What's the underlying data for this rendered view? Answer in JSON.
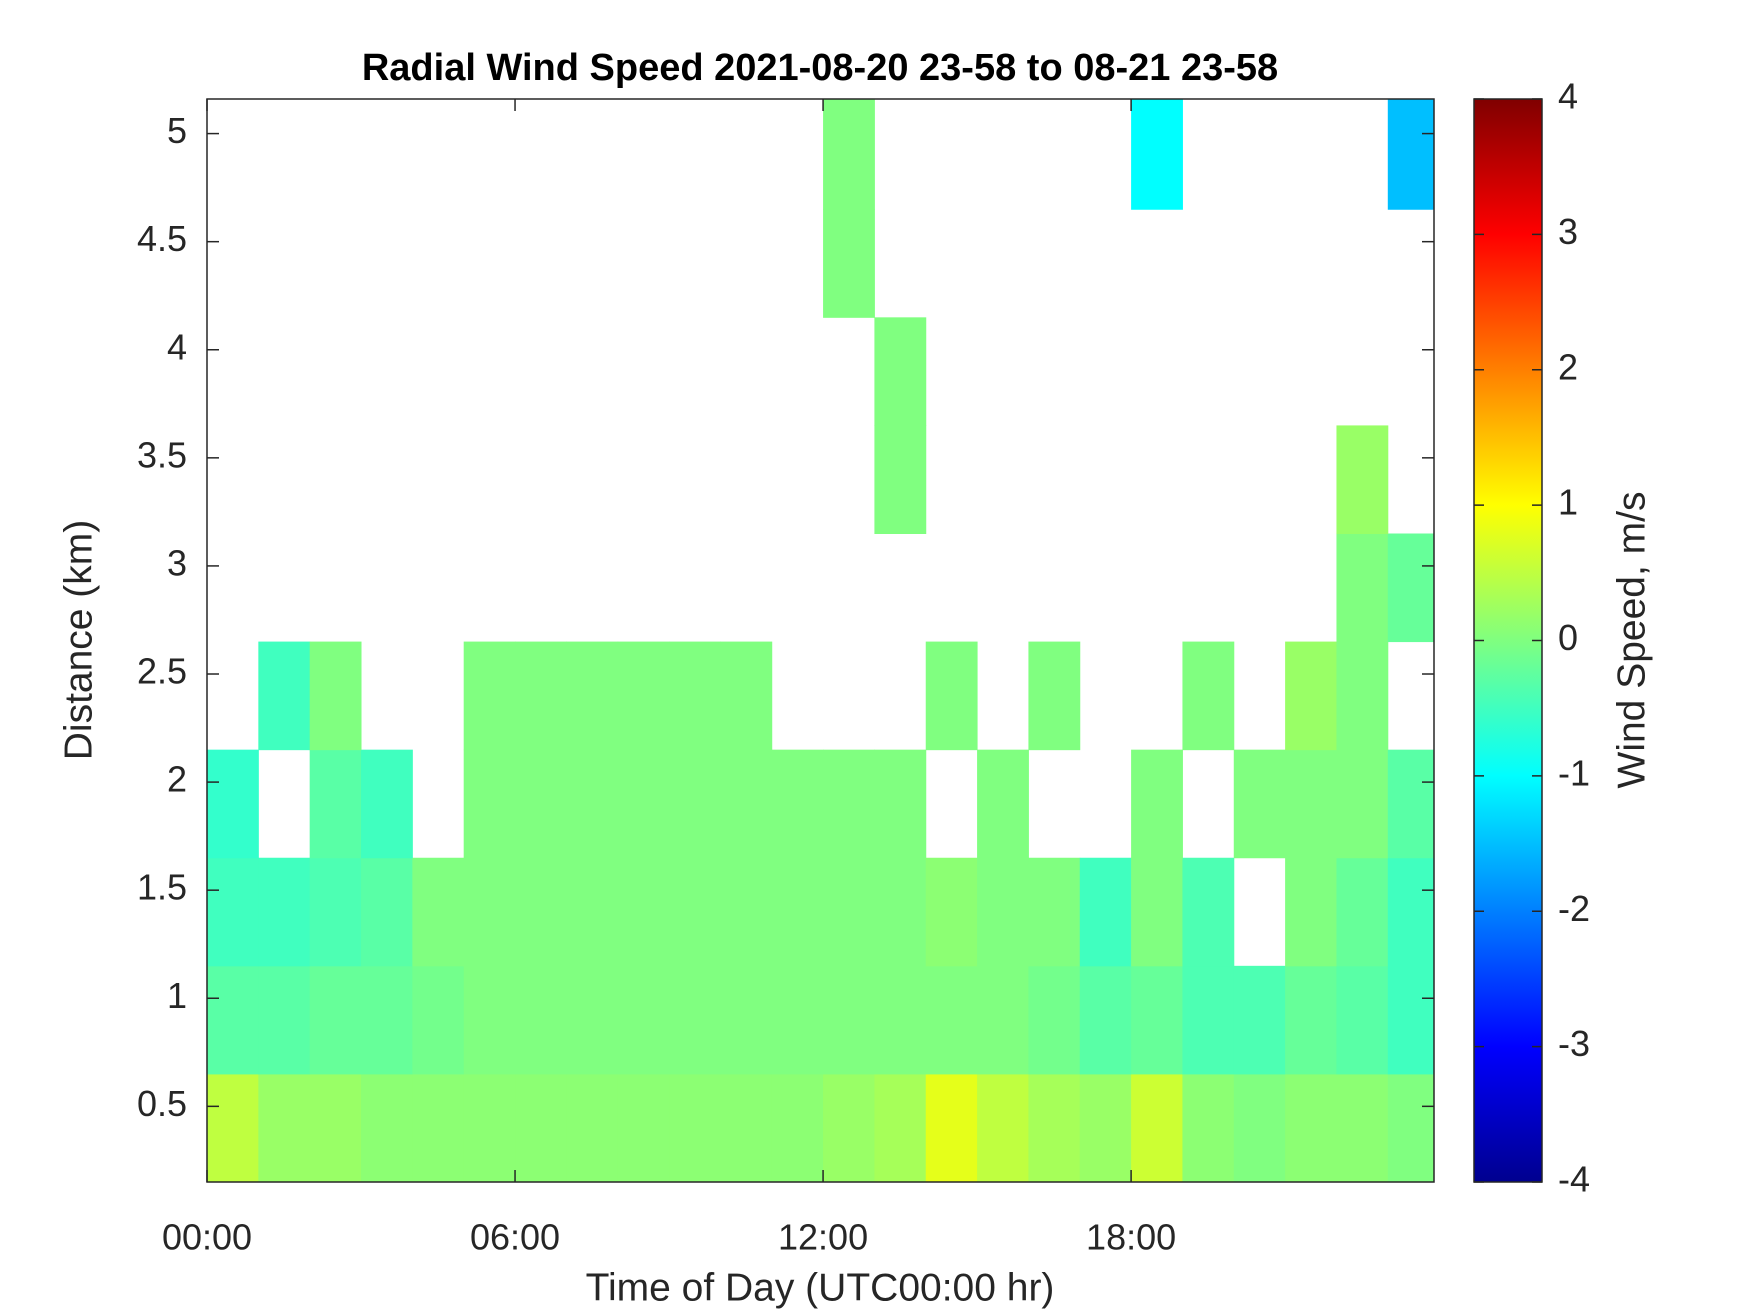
{
  "chart_data": {
    "type": "heatmap",
    "title": "Radial Wind Speed 2021-08-20 23-58 to 08-21 23-58",
    "x_label": "Time of Day (UTC00:00 hr)",
    "y_label": "Distance (km)",
    "colormap": "jet",
    "x": [
      0.5,
      1.5,
      2.5,
      3.5,
      4.5,
      5.5,
      6.5,
      7.5,
      8.5,
      9.5,
      10.5,
      11.5,
      12.5,
      13.5,
      14.5,
      15.5,
      16.5,
      17.5,
      18.5,
      19.5,
      20.5,
      21.5,
      22.5,
      23.5
    ],
    "y": [
      0.4,
      0.9,
      1.4,
      1.9,
      2.4,
      2.9,
      3.4,
      3.9,
      4.4,
      4.9
    ],
    "z": [
      [
        0.5,
        0.2,
        0.2,
        0.1,
        0.1,
        0.1,
        0.1,
        0.1,
        0.1,
        0.1,
        0.1,
        0.1,
        0.2,
        0.3,
        0.8,
        0.5,
        0.3,
        0.2,
        0.6,
        0.1,
        0.0,
        0.1,
        0.1,
        0.0
      ],
      [
        -0.3,
        -0.3,
        -0.2,
        -0.2,
        -0.1,
        0.0,
        0.0,
        0.0,
        0.0,
        0.0,
        0.0,
        0.0,
        0.0,
        0.0,
        0.0,
        0.0,
        -0.1,
        -0.3,
        -0.2,
        -0.4,
        -0.4,
        -0.2,
        -0.3,
        -0.5
      ],
      [
        -0.5,
        -0.5,
        -0.4,
        -0.3,
        0.0,
        0.0,
        0.0,
        0.0,
        0.0,
        0.0,
        0.0,
        0.0,
        0.0,
        0.0,
        0.1,
        0.0,
        0.0,
        -0.5,
        0.0,
        -0.4,
        null,
        0.0,
        -0.2,
        -0.5
      ],
      [
        -0.6,
        null,
        -0.3,
        -0.5,
        null,
        0.0,
        0.0,
        0.0,
        0.0,
        0.0,
        0.0,
        0.0,
        0.0,
        0.0,
        null,
        0.0,
        null,
        null,
        0.0,
        null,
        0.0,
        0.0,
        0.0,
        -0.3
      ],
      [
        null,
        -0.5,
        0.0,
        null,
        null,
        0.0,
        0.0,
        0.0,
        0.0,
        0.0,
        0.0,
        null,
        null,
        null,
        0.0,
        null,
        0.0,
        null,
        null,
        0.0,
        null,
        0.2,
        0.0,
        null
      ],
      [
        null,
        null,
        null,
        null,
        null,
        null,
        null,
        null,
        null,
        null,
        null,
        null,
        null,
        null,
        null,
        null,
        null,
        null,
        null,
        null,
        null,
        null,
        0.0,
        -0.2
      ],
      [
        null,
        null,
        null,
        null,
        null,
        null,
        null,
        null,
        null,
        null,
        null,
        null,
        null,
        0.0,
        null,
        null,
        null,
        null,
        null,
        null,
        null,
        null,
        0.2,
        null
      ],
      [
        null,
        null,
        null,
        null,
        null,
        null,
        null,
        null,
        null,
        null,
        null,
        null,
        null,
        0.0,
        null,
        null,
        null,
        null,
        null,
        null,
        null,
        null,
        null,
        null
      ],
      [
        null,
        null,
        null,
        null,
        null,
        null,
        null,
        null,
        null,
        null,
        null,
        null,
        0.0,
        null,
        null,
        null,
        null,
        null,
        null,
        null,
        null,
        null,
        null,
        null
      ],
      [
        null,
        null,
        null,
        null,
        null,
        null,
        null,
        null,
        null,
        null,
        null,
        null,
        0.0,
        null,
        null,
        null,
        null,
        null,
        -1,
        null,
        null,
        null,
        null,
        -1.5
      ]
    ],
    "xlim": [
      0,
      23.9
    ],
    "xticks": [
      {
        "value": 0,
        "label": "00:00"
      },
      {
        "value": 6,
        "label": "06:00"
      },
      {
        "value": 12,
        "label": "12:00"
      },
      {
        "value": 18,
        "label": "18:00"
      }
    ],
    "ylim": [
      0.15,
      5.16
    ],
    "yticks": [
      0.5,
      1,
      1.5,
      2,
      2.5,
      3,
      3.5,
      4,
      4.5,
      5
    ],
    "colorbar": {
      "label": "Wind Speed, m/s",
      "lim": [
        -4,
        4
      ],
      "ticks": [
        -4,
        -3,
        -2,
        -1,
        0,
        1,
        2,
        3,
        4
      ]
    }
  }
}
